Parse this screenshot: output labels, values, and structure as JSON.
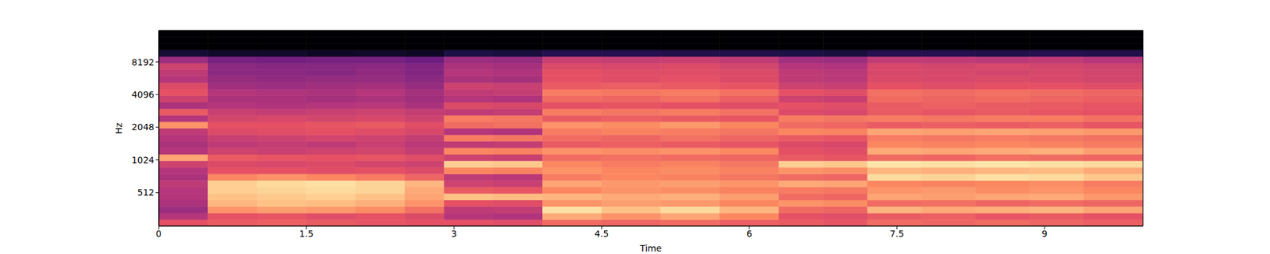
{
  "chart_data": {
    "type": "heatmap",
    "x_label": "Time",
    "y_label": "Hz",
    "xlim": [
      0,
      10
    ],
    "xticks": [
      0,
      1.5,
      3,
      4.5,
      6,
      7.5,
      9
    ],
    "ylim": [
      0,
      16000
    ],
    "yticks": [
      512,
      1024,
      2048,
      4096,
      8192
    ],
    "zlim": [
      -80,
      0
    ],
    "x_edges": [
      0,
      0.5,
      1,
      1.5,
      2,
      2.5,
      2.9,
      3.4,
      3.9,
      4.5,
      5.1,
      5.7,
      6.3,
      6.75,
      7.2,
      7.75,
      8.3,
      8.85,
      9.4,
      10
    ],
    "y_edges": [
      0,
      100,
      200,
      300,
      400,
      500,
      600,
      700,
      800,
      900,
      1000,
      1149,
      1320,
      1516,
      1741,
      2000,
      2297,
      2639,
      3031,
      3482,
      4000,
      4595,
      5278,
      6063,
      6964,
      8000,
      9190,
      10556,
      12126,
      13929,
      16000
    ],
    "cells": [
      [
        -30,
        -40,
        -45,
        -42,
        -40,
        -40,
        -38,
        -42,
        -40,
        -35,
        -15,
        -40,
        -42,
        -40,
        -38,
        -18,
        -40,
        -28,
        -42,
        -35,
        -30,
        -32,
        -40,
        -38,
        -35,
        -45,
        -72,
        -80,
        -80,
        -80
      ],
      [
        -28,
        -30,
        -18,
        -12,
        -10,
        -8,
        -8,
        -20,
        -30,
        -32,
        -28,
        -35,
        -38,
        -36,
        -32,
        -30,
        -34,
        -36,
        -40,
        -42,
        -40,
        -44,
        -46,
        -48,
        -48,
        -52,
        -74,
        -80,
        -80,
        -80
      ],
      [
        -27,
        -29,
        -16,
        -10,
        -9,
        -7,
        -6,
        -18,
        -30,
        -33,
        -29,
        -36,
        -37,
        -35,
        -31,
        -30,
        -33,
        -37,
        -41,
        -42,
        -41,
        -45,
        -47,
        -48,
        -49,
        -53,
        -74,
        -80,
        -80,
        -80
      ],
      [
        -28,
        -31,
        -17,
        -11,
        -8,
        -6,
        -5,
        -20,
        -31,
        -32,
        -30,
        -35,
        -38,
        -34,
        -30,
        -29,
        -34,
        -36,
        -40,
        -43,
        -42,
        -44,
        -46,
        -49,
        -49,
        -52,
        -75,
        -80,
        -80,
        -80
      ],
      [
        -29,
        -30,
        -19,
        -13,
        -10,
        -7,
        -7,
        -22,
        -30,
        -34,
        -29,
        -34,
        -36,
        -35,
        -31,
        -28,
        -33,
        -35,
        -39,
        -42,
        -40,
        -43,
        -46,
        -47,
        -48,
        -52,
        -74,
        -80,
        -80,
        -80
      ],
      [
        -30,
        -32,
        -24,
        -18,
        -15,
        -14,
        -12,
        -26,
        -32,
        -35,
        -31,
        -37,
        -39,
        -37,
        -33,
        -31,
        -35,
        -37,
        -42,
        -44,
        -43,
        -46,
        -48,
        -50,
        -50,
        -54,
        -75,
        -80,
        -80,
        -80
      ],
      [
        -30,
        -40,
        -38,
        -30,
        -10,
        -28,
        -35,
        -38,
        -20,
        -8,
        -35,
        -20,
        -38,
        -22,
        -40,
        -25,
        -22,
        -38,
        -32,
        -40,
        -38,
        -35,
        -42,
        -40,
        -42,
        -45,
        -70,
        -80,
        -80,
        -80
      ],
      [
        -31,
        -41,
        -37,
        -31,
        -11,
        -29,
        -36,
        -39,
        -21,
        -9,
        -36,
        -21,
        -37,
        -23,
        -41,
        -24,
        -23,
        -37,
        -33,
        -41,
        -37,
        -36,
        -43,
        -41,
        -43,
        -46,
        -71,
        -80,
        -80,
        -80
      ],
      [
        -25,
        -14,
        -5,
        -18,
        -12,
        -20,
        -15,
        -22,
        -18,
        -20,
        -25,
        -18,
        -28,
        -25,
        -22,
        -18,
        -28,
        -22,
        -30,
        -25,
        -22,
        -28,
        -30,
        -30,
        -32,
        -36,
        -68,
        -80,
        -80,
        -80
      ],
      [
        -26,
        -18,
        -10,
        -16,
        -14,
        -18,
        -17,
        -20,
        -20,
        -22,
        -24,
        -19,
        -27,
        -26,
        -21,
        -19,
        -27,
        -23,
        -29,
        -26,
        -23,
        -27,
        -31,
        -31,
        -33,
        -37,
        -68,
        -80,
        -80,
        -80
      ],
      [
        -25,
        -15,
        -6,
        -17,
        -13,
        -19,
        -16,
        -21,
        -19,
        -21,
        -25,
        -18,
        -28,
        -24,
        -22,
        -17,
        -28,
        -22,
        -30,
        -24,
        -22,
        -28,
        -30,
        -31,
        -32,
        -36,
        -69,
        -80,
        -80,
        -80
      ],
      [
        -27,
        -20,
        -12,
        -20,
        -16,
        -21,
        -18,
        -23,
        -21,
        -23,
        -26,
        -20,
        -29,
        -26,
        -23,
        -20,
        -29,
        -24,
        -31,
        -27,
        -24,
        -29,
        -32,
        -32,
        -34,
        -38,
        -69,
        -80,
        -80,
        -80
      ],
      [
        -28,
        -30,
        -25,
        -18,
        -25,
        -22,
        -14,
        -25,
        -18,
        -8,
        -28,
        -30,
        -32,
        -28,
        -20,
        -25,
        -22,
        -32,
        -30,
        -35,
        -30,
        -35,
        -38,
        -38,
        -40,
        -44,
        -70,
        -80,
        -80,
        -80
      ],
      [
        -29,
        -31,
        -26,
        -19,
        -26,
        -23,
        -15,
        -26,
        -19,
        -9,
        -29,
        -31,
        -33,
        -29,
        -21,
        -26,
        -23,
        -33,
        -31,
        -36,
        -31,
        -36,
        -39,
        -39,
        -41,
        -45,
        -71,
        -80,
        -80,
        -80
      ],
      [
        -25,
        -28,
        -12,
        -25,
        -15,
        -18,
        -20,
        -6,
        -12,
        -4,
        -25,
        -14,
        -20,
        -22,
        -15,
        -28,
        -22,
        -28,
        -28,
        -25,
        -24,
        -30,
        -32,
        -33,
        -33,
        -38,
        -68,
        -80,
        -80,
        -80
      ],
      [
        -26,
        -27,
        -14,
        -24,
        -16,
        -17,
        -21,
        -7,
        -13,
        -5,
        -26,
        -15,
        -21,
        -23,
        -16,
        -27,
        -23,
        -29,
        -27,
        -26,
        -25,
        -31,
        -33,
        -33,
        -34,
        -38,
        -68,
        -80,
        -80,
        -80
      ],
      [
        -25,
        -29,
        -13,
        -26,
        -15,
        -19,
        -20,
        -5,
        -12,
        -4,
        -24,
        -14,
        -20,
        -22,
        -15,
        -28,
        -22,
        -28,
        -28,
        -25,
        -24,
        -30,
        -32,
        -34,
        -33,
        -39,
        -69,
        -80,
        -80,
        -80
      ],
      [
        -26,
        -28,
        -12,
        -25,
        -14,
        -18,
        -19,
        -6,
        -11,
        -5,
        -25,
        -13,
        -21,
        -23,
        -16,
        -27,
        -22,
        -29,
        -28,
        -26,
        -25,
        -30,
        -33,
        -33,
        -34,
        -38,
        -68,
        -80,
        -80,
        -80
      ],
      [
        -27,
        -30,
        -15,
        -26,
        -17,
        -20,
        -22,
        -9,
        -14,
        -6,
        -26,
        -16,
        -22,
        -24,
        -17,
        -29,
        -24,
        -30,
        -29,
        -27,
        -26,
        -31,
        -34,
        -34,
        -35,
        -40,
        -69,
        -80,
        -80,
        -80
      ]
    ]
  }
}
